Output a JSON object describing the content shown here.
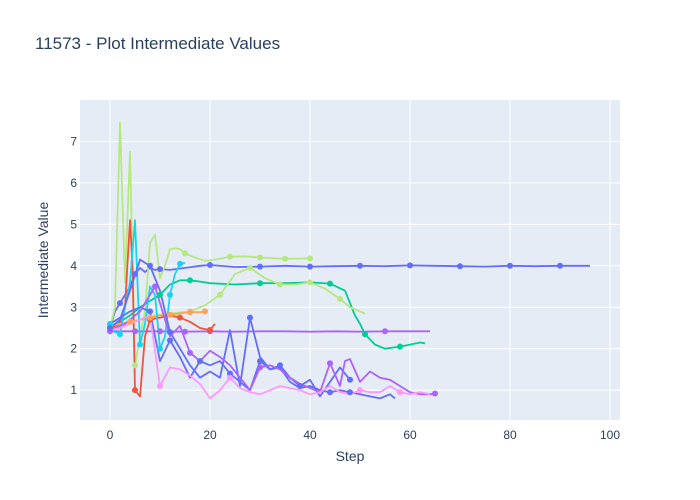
{
  "chart_data": {
    "type": "line",
    "title": "11573 - Plot Intermediate Values",
    "xlabel": "Step",
    "ylabel": "Intermediate Value",
    "xlim": [
      -6,
      102
    ],
    "ylim": [
      0.28,
      8.0
    ],
    "xticks": [
      0,
      20,
      40,
      60,
      80,
      100
    ],
    "yticks": [
      1,
      2,
      3,
      4,
      5,
      6,
      7
    ],
    "grid": true,
    "legend": "none",
    "colors": {
      "plot_bg": "#e5ecf6",
      "grid": "#ffffff",
      "text": "#2a3f5f"
    },
    "series": [
      {
        "color": "#636efa",
        "x": [
          0,
          1,
          2,
          3,
          4,
          5,
          6,
          7,
          8,
          9,
          10,
          12,
          15,
          18,
          20,
          25,
          30,
          35,
          40,
          45,
          50,
          55,
          60,
          65,
          70,
          75,
          80,
          85,
          90,
          96
        ],
        "y": [
          2.5,
          2.9,
          3.1,
          3.3,
          3.5,
          3.8,
          3.95,
          3.85,
          3.95,
          3.9,
          3.92,
          3.9,
          3.95,
          4.0,
          4.02,
          3.97,
          3.98,
          4.0,
          3.98,
          3.99,
          4.0,
          3.99,
          4.01,
          4.0,
          3.99,
          3.98,
          4.0,
          3.99,
          4.0,
          4.0
        ],
        "markers": [
          0,
          2,
          5,
          10,
          20,
          30,
          40,
          50,
          60,
          70,
          80,
          90
        ]
      },
      {
        "color": "#b6e880",
        "x": [
          0,
          1,
          2,
          3,
          4,
          5,
          6,
          7,
          8,
          9,
          10,
          11,
          12,
          13,
          14,
          15,
          17,
          19,
          21,
          24,
          27,
          30,
          35,
          40
        ],
        "y": [
          2.5,
          3.0,
          7.45,
          3.6,
          6.75,
          1.6,
          2.3,
          2.9,
          4.55,
          4.75,
          3.7,
          4.0,
          4.4,
          4.42,
          4.4,
          4.3,
          4.2,
          4.12,
          4.15,
          4.22,
          4.23,
          4.2,
          4.17,
          4.18
        ],
        "markers": [
          0,
          5,
          15,
          24,
          30,
          35,
          40
        ]
      },
      {
        "color": "#00cc96",
        "x": [
          0,
          2,
          4,
          6,
          8,
          10,
          12,
          14,
          16,
          18,
          20,
          25,
          30,
          35,
          40,
          44,
          47,
          48,
          49,
          50,
          51,
          53,
          55,
          58,
          60,
          62,
          63
        ],
        "y": [
          2.5,
          2.65,
          2.8,
          3.0,
          3.15,
          3.3,
          3.55,
          3.65,
          3.65,
          3.62,
          3.58,
          3.55,
          3.58,
          3.58,
          3.6,
          3.57,
          3.4,
          3.1,
          2.8,
          2.6,
          2.35,
          2.1,
          2.0,
          2.05,
          2.1,
          2.15,
          2.13
        ],
        "markers": [
          0,
          10,
          16,
          24,
          30,
          37,
          44,
          51,
          58
        ]
      },
      {
        "color": "#b6e880",
        "x": [
          0,
          3,
          6,
          9,
          12,
          16,
          19,
          22,
          25,
          28,
          31,
          34,
          37,
          40,
          43,
          46,
          48,
          51
        ],
        "y": [
          2.5,
          2.6,
          2.7,
          2.8,
          2.85,
          2.9,
          3.05,
          3.3,
          3.8,
          3.95,
          3.7,
          3.55,
          3.55,
          3.6,
          3.45,
          3.2,
          3.0,
          2.85
        ],
        "markers": [
          16,
          22,
          28,
          34,
          40,
          46
        ]
      },
      {
        "color": "#ab63fa",
        "x": [
          0,
          5,
          10,
          15,
          20,
          25,
          30,
          35,
          40,
          45,
          50,
          55,
          60,
          64
        ],
        "y": [
          2.42,
          2.42,
          2.42,
          2.41,
          2.42,
          2.41,
          2.42,
          2.42,
          2.41,
          2.42,
          2.41,
          2.42,
          2.42,
          2.42
        ],
        "markers": [
          0,
          5,
          10,
          15,
          20,
          27,
          34,
          41,
          48,
          55,
          62
        ]
      },
      {
        "color": "#ef553b",
        "x": [
          0,
          1,
          2,
          3,
          4,
          4.5,
          5,
          6,
          7,
          8,
          10,
          12,
          14,
          16,
          18,
          20,
          21
        ],
        "y": [
          2.5,
          2.55,
          2.6,
          3.0,
          5.1,
          4.0,
          1.0,
          0.85,
          2.3,
          2.7,
          2.75,
          2.8,
          2.75,
          2.65,
          2.5,
          2.45,
          2.6
        ],
        "markers": [
          0,
          5,
          8,
          14,
          17,
          20
        ]
      },
      {
        "color": "#ffa15a",
        "x": [
          0,
          2,
          4,
          6,
          8,
          10,
          12,
          14,
          16,
          18,
          19
        ],
        "y": [
          2.55,
          2.6,
          2.65,
          2.7,
          2.75,
          2.8,
          2.82,
          2.85,
          2.88,
          2.88,
          2.9
        ],
        "markers": [
          0,
          4,
          8,
          12,
          16,
          19
        ]
      },
      {
        "color": "#19d3f3",
        "x": [
          0,
          1,
          2,
          3,
          4,
          5,
          6,
          7,
          8,
          9,
          10,
          11,
          12,
          13,
          14,
          15
        ],
        "y": [
          2.6,
          2.4,
          2.35,
          3.0,
          3.6,
          5.1,
          2.1,
          2.6,
          3.5,
          3.3,
          2.0,
          2.3,
          3.3,
          3.8,
          4.05,
          4.07
        ],
        "markers": [
          0,
          2,
          6,
          10,
          12,
          14
        ]
      },
      {
        "color": "#636efa",
        "x": [
          0,
          2,
          4,
          6,
          8,
          10,
          12,
          14,
          16,
          18,
          20,
          22,
          24,
          26,
          28,
          30,
          32,
          34,
          36,
          38,
          40,
          42,
          44,
          46,
          48,
          50,
          52,
          54,
          56,
          57
        ],
        "y": [
          2.5,
          2.7,
          3.4,
          4.15,
          4.0,
          3.4,
          2.4,
          2.0,
          1.6,
          1.3,
          1.45,
          1.3,
          2.45,
          1.1,
          2.75,
          1.8,
          1.5,
          1.55,
          1.2,
          1.05,
          1.1,
          1.0,
          0.95,
          1.0,
          0.95,
          0.9,
          0.85,
          0.8,
          0.9,
          0.8
        ],
        "markers": [
          0,
          8,
          12,
          23,
          28,
          33,
          39,
          44,
          48,
          53
        ]
      },
      {
        "color": "#636efa",
        "x": [
          0,
          2,
          4,
          6,
          8,
          10,
          12,
          14,
          16,
          18,
          20,
          22,
          24,
          26,
          28,
          30,
          32,
          34,
          36,
          38,
          40,
          42,
          44,
          46,
          48
        ],
        "y": [
          2.6,
          2.75,
          2.9,
          3.0,
          2.9,
          1.7,
          2.2,
          1.8,
          1.3,
          1.7,
          1.6,
          1.7,
          1.4,
          1.2,
          1.0,
          1.7,
          1.5,
          1.6,
          1.3,
          1.1,
          1.25,
          0.85,
          1.2,
          1.55,
          1.25
        ],
        "markers": [
          8,
          12,
          18,
          24,
          30,
          34,
          38,
          41,
          48
        ]
      },
      {
        "color": "#ab63fa",
        "x": [
          0,
          3,
          6,
          9,
          12,
          14,
          16,
          18,
          20,
          22,
          24,
          26,
          28,
          30,
          32,
          34,
          36,
          38,
          40,
          42,
          44,
          46,
          47,
          48,
          50,
          52,
          54,
          56,
          58,
          60,
          62,
          64,
          65
        ],
        "y": [
          2.45,
          2.6,
          2.9,
          3.5,
          2.3,
          2.55,
          1.9,
          1.7,
          1.95,
          1.8,
          1.6,
          1.3,
          1.0,
          1.55,
          1.6,
          1.5,
          1.3,
          1.15,
          1.05,
          0.95,
          1.65,
          1.1,
          1.7,
          1.75,
          1.2,
          1.45,
          1.3,
          1.25,
          1.1,
          0.95,
          0.9,
          0.9,
          0.92
        ],
        "markers": [
          9,
          16,
          30,
          44,
          57,
          65
        ]
      },
      {
        "color": "#ff97ff",
        "x": [
          0,
          2,
          4,
          6,
          8,
          10,
          12,
          14,
          16,
          18,
          20,
          22,
          24,
          26,
          28,
          30,
          32,
          34,
          36,
          38,
          40,
          42,
          44,
          46,
          48,
          50,
          52,
          54,
          56,
          58,
          60,
          62,
          64
        ],
        "y": [
          2.45,
          2.5,
          2.6,
          2.7,
          2.8,
          1.1,
          1.55,
          1.5,
          1.35,
          1.15,
          0.8,
          1.0,
          1.3,
          1.05,
          0.95,
          0.9,
          1.0,
          1.1,
          1.05,
          1.0,
          0.9,
          0.95,
          1.1,
          0.95,
          0.9,
          1.0,
          0.95,
          0.95,
          1.1,
          0.95,
          0.9,
          0.95,
          0.9
        ],
        "markers": [
          10,
          19,
          24,
          33,
          43,
          50,
          58
        ]
      }
    ]
  }
}
